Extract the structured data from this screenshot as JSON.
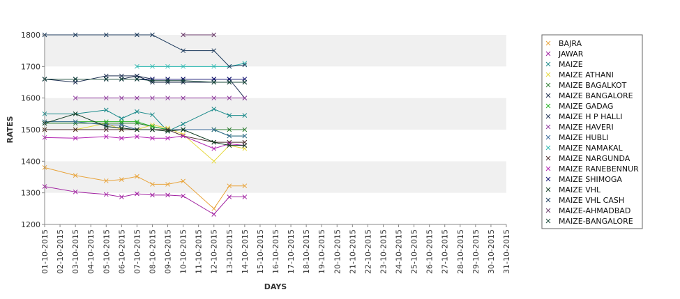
{
  "chart_data": {
    "type": "line",
    "xlabel": "DAYS",
    "ylabel": "RATES",
    "ylim": [
      1200,
      1800
    ],
    "yticks": [
      1200,
      1300,
      1400,
      1500,
      1600,
      1700,
      1800
    ],
    "grid": "alternating horizontal bands",
    "legend_position": "right",
    "categories": [
      "01-10-2015",
      "02-10-2015",
      "03-10-2015",
      "04-10-2015",
      "05-10-2015",
      "06-10-2015",
      "07-10-2015",
      "08-10-2015",
      "09-10-2015",
      "10-10-2015",
      "11-10-2015",
      "12-10-2015",
      "13-10-2015",
      "14-10-2015",
      "15-10-2015",
      "16-10-2015",
      "17-10-2015",
      "18-10-2015",
      "19-10-2015",
      "20-10-2015",
      "21-10-2015",
      "22-10-2015",
      "23-10-2015",
      "24-10-2015",
      "25-10-2015",
      "26-10-2015",
      "27-10-2015",
      "28-10-2015",
      "29-10-2015",
      "30-10-2015",
      "31-10-2015"
    ],
    "series": [
      {
        "name": "BAJRA",
        "color": "#E8A33A",
        "points": [
          [
            "01-10-2015",
            1380
          ],
          [
            "03-10-2015",
            1355
          ],
          [
            "05-10-2015",
            1338
          ],
          [
            "06-10-2015",
            1342
          ],
          [
            "07-10-2015",
            1352
          ],
          [
            "08-10-2015",
            1327
          ],
          [
            "09-10-2015",
            1327
          ],
          [
            "10-10-2015",
            1337
          ],
          [
            "12-10-2015",
            1250
          ],
          [
            "13-10-2015",
            1322
          ],
          [
            "14-10-2015",
            1322
          ]
        ]
      },
      {
        "name": "JAWAR",
        "color": "#A020A0",
        "points": [
          [
            "01-10-2015",
            1320
          ],
          [
            "03-10-2015",
            1303
          ],
          [
            "05-10-2015",
            1295
          ],
          [
            "06-10-2015",
            1287
          ],
          [
            "07-10-2015",
            1297
          ],
          [
            "08-10-2015",
            1293
          ],
          [
            "09-10-2015",
            1293
          ],
          [
            "10-10-2015",
            1290
          ],
          [
            "12-10-2015",
            1232
          ],
          [
            "13-10-2015",
            1287
          ],
          [
            "14-10-2015",
            1287
          ]
        ]
      },
      {
        "name": "MAIZE",
        "color": "#1A8A8A",
        "points": [
          [
            "01-10-2015",
            1550
          ],
          [
            "03-10-2015",
            1550
          ],
          [
            "05-10-2015",
            1562
          ],
          [
            "06-10-2015",
            1535
          ],
          [
            "07-10-2015",
            1557
          ],
          [
            "08-10-2015",
            1547
          ],
          [
            "09-10-2015",
            1495
          ],
          [
            "10-10-2015",
            1518
          ],
          [
            "12-10-2015",
            1565
          ],
          [
            "13-10-2015",
            1545
          ],
          [
            "14-10-2015",
            1545
          ]
        ]
      },
      {
        "name": "MAIZE ATHANI",
        "color": "#E6D83A",
        "points": [
          [
            "01-10-2015",
            1500
          ],
          [
            "03-10-2015",
            1500
          ],
          [
            "05-10-2015",
            1520
          ],
          [
            "06-10-2015",
            1500
          ],
          [
            "07-10-2015",
            1500
          ],
          [
            "08-10-2015",
            1515
          ],
          [
            "09-10-2015",
            1505
          ],
          [
            "10-10-2015",
            1485
          ],
          [
            "12-10-2015",
            1400
          ],
          [
            "13-10-2015",
            1450
          ],
          [
            "14-10-2015",
            1440
          ]
        ]
      },
      {
        "name": "MAIZE BAGALKOT",
        "color": "#2E7D32",
        "points": [
          [
            "01-10-2015",
            1520
          ],
          [
            "03-10-2015",
            1520
          ],
          [
            "05-10-2015",
            1520
          ],
          [
            "06-10-2015",
            1520
          ],
          [
            "07-10-2015",
            1520
          ],
          [
            "08-10-2015",
            1510
          ],
          [
            "09-10-2015",
            1500
          ],
          [
            "10-10-2015",
            1500
          ],
          [
            "12-10-2015",
            1500
          ],
          [
            "13-10-2015",
            1500
          ],
          [
            "14-10-2015",
            1500
          ]
        ]
      },
      {
        "name": "MAIZE BANGALORE",
        "color": "#1B2A4A",
        "points": [
          [
            "01-10-2015",
            1660
          ],
          [
            "03-10-2015",
            1660
          ],
          [
            "05-10-2015",
            1660
          ],
          [
            "06-10-2015",
            1660
          ],
          [
            "07-10-2015",
            1670
          ],
          [
            "08-10-2015",
            1650
          ],
          [
            "09-10-2015",
            1650
          ],
          [
            "10-10-2015",
            1650
          ],
          [
            "12-10-2015",
            1650
          ],
          [
            "13-10-2015",
            1650
          ],
          [
            "14-10-2015",
            1650
          ]
        ]
      },
      {
        "name": "MAIZE GADAG",
        "color": "#20B020",
        "points": [
          [
            "01-10-2015",
            1525
          ],
          [
            "03-10-2015",
            1525
          ],
          [
            "05-10-2015",
            1525
          ],
          [
            "06-10-2015",
            1525
          ],
          [
            "07-10-2015",
            1525
          ],
          [
            "08-10-2015",
            1510
          ],
          [
            "09-10-2015",
            1500
          ],
          [
            "10-10-2015",
            1500
          ],
          [
            "12-10-2015",
            1500
          ],
          [
            "13-10-2015",
            1480
          ],
          [
            "14-10-2015",
            1480
          ]
        ]
      },
      {
        "name": "MAIZE H P HALLI",
        "color": "#223355",
        "points": [
          [
            "01-10-2015",
            1660
          ],
          [
            "03-10-2015",
            1650
          ],
          [
            "05-10-2015",
            1670
          ],
          [
            "06-10-2015",
            1670
          ],
          [
            "07-10-2015",
            1670
          ],
          [
            "08-10-2015",
            1660
          ],
          [
            "09-10-2015",
            1660
          ],
          [
            "10-10-2015",
            1660
          ],
          [
            "12-10-2015",
            1660
          ],
          [
            "13-10-2015",
            1660
          ],
          [
            "14-10-2015",
            1600
          ]
        ]
      },
      {
        "name": "MAIZE HAVERI",
        "color": "#8E3A9C",
        "points": [
          [
            "03-10-2015",
            1600
          ],
          [
            "05-10-2015",
            1600
          ],
          [
            "06-10-2015",
            1600
          ],
          [
            "07-10-2015",
            1600
          ],
          [
            "08-10-2015",
            1600
          ],
          [
            "09-10-2015",
            1600
          ],
          [
            "10-10-2015",
            1600
          ],
          [
            "12-10-2015",
            1600
          ],
          [
            "13-10-2015",
            1600
          ],
          [
            "14-10-2015",
            1600
          ]
        ]
      },
      {
        "name": "MAIZE HUBLI",
        "color": "#3A6A9A",
        "points": [
          [
            "01-10-2015",
            1525
          ],
          [
            "03-10-2015",
            1525
          ],
          [
            "05-10-2015",
            1515
          ],
          [
            "06-10-2015",
            1515
          ],
          [
            "07-10-2015",
            1500
          ],
          [
            "08-10-2015",
            1500
          ],
          [
            "09-10-2015",
            1500
          ],
          [
            "10-10-2015",
            1500
          ],
          [
            "12-10-2015",
            1500
          ],
          [
            "13-10-2015",
            1480
          ],
          [
            "14-10-2015",
            1480
          ]
        ]
      },
      {
        "name": "MAIZE NAMAKAL",
        "color": "#2FB8B0",
        "points": [
          [
            "07-10-2015",
            1700
          ],
          [
            "08-10-2015",
            1700
          ],
          [
            "09-10-2015",
            1700
          ],
          [
            "10-10-2015",
            1700
          ],
          [
            "12-10-2015",
            1700
          ],
          [
            "13-10-2015",
            1700
          ],
          [
            "14-10-2015",
            1710
          ]
        ]
      },
      {
        "name": "MAIZE NARGUNDA",
        "color": "#4A2A2A",
        "points": [
          [
            "01-10-2015",
            1500
          ],
          [
            "03-10-2015",
            1500
          ],
          [
            "05-10-2015",
            1500
          ],
          [
            "06-10-2015",
            1500
          ],
          [
            "07-10-2015",
            1500
          ],
          [
            "08-10-2015",
            1500
          ],
          [
            "09-10-2015",
            1500
          ],
          [
            "10-10-2015",
            1480
          ],
          [
            "12-10-2015",
            1460
          ],
          [
            "13-10-2015",
            1460
          ],
          [
            "14-10-2015",
            1460
          ]
        ]
      },
      {
        "name": "MAIZE RANEBENNUR",
        "color": "#B020B0",
        "points": [
          [
            "01-10-2015",
            1475
          ],
          [
            "03-10-2015",
            1473
          ],
          [
            "05-10-2015",
            1478
          ],
          [
            "06-10-2015",
            1473
          ],
          [
            "07-10-2015",
            1478
          ],
          [
            "08-10-2015",
            1473
          ],
          [
            "09-10-2015",
            1473
          ],
          [
            "10-10-2015",
            1480
          ],
          [
            "12-10-2015",
            1440
          ],
          [
            "13-10-2015",
            1455
          ],
          [
            "14-10-2015",
            1450
          ]
        ]
      },
      {
        "name": "MAIZE SHIMOGA",
        "color": "#101070",
        "points": [
          [
            "01-10-2015",
            1660
          ],
          [
            "03-10-2015",
            1660
          ],
          [
            "05-10-2015",
            1660
          ],
          [
            "06-10-2015",
            1660
          ],
          [
            "07-10-2015",
            1660
          ],
          [
            "08-10-2015",
            1660
          ],
          [
            "09-10-2015",
            1660
          ],
          [
            "10-10-2015",
            1660
          ],
          [
            "12-10-2015",
            1660
          ],
          [
            "13-10-2015",
            1660
          ],
          [
            "14-10-2015",
            1660
          ]
        ]
      },
      {
        "name": "MAIZE VHL",
        "color": "#0F3A20",
        "points": [
          [
            "01-10-2015",
            1520
          ],
          [
            "03-10-2015",
            1550
          ],
          [
            "05-10-2015",
            1510
          ],
          [
            "06-10-2015",
            1505
          ],
          [
            "07-10-2015",
            1500
          ],
          [
            "08-10-2015",
            1500
          ],
          [
            "09-10-2015",
            1495
          ],
          [
            "10-10-2015",
            1500
          ],
          [
            "12-10-2015",
            1460
          ],
          [
            "13-10-2015",
            1450
          ],
          [
            "14-10-2015",
            1450
          ]
        ]
      },
      {
        "name": "MAIZE VHL CASH",
        "color": "#1C3A5C",
        "points": [
          [
            "01-10-2015",
            1800
          ],
          [
            "03-10-2015",
            1800
          ],
          [
            "05-10-2015",
            1800
          ],
          [
            "07-10-2015",
            1800
          ],
          [
            "08-10-2015",
            1800
          ],
          [
            "10-10-2015",
            1750
          ],
          [
            "12-10-2015",
            1750
          ],
          [
            "13-10-2015",
            1700
          ],
          [
            "14-10-2015",
            1705
          ]
        ]
      },
      {
        "name": "MAIZE-AHMADBAD",
        "color": "#6A3A6A",
        "points": [
          [
            "10-10-2015",
            1800
          ],
          [
            "12-10-2015",
            1800
          ]
        ]
      },
      {
        "name": "MAIZE-BANGALORE",
        "color": "#1A4A3A",
        "points": [
          [
            "01-10-2015",
            1660
          ],
          [
            "03-10-2015",
            1660
          ],
          [
            "05-10-2015",
            1660
          ],
          [
            "06-10-2015",
            1660
          ],
          [
            "07-10-2015",
            1660
          ],
          [
            "08-10-2015",
            1655
          ],
          [
            "09-10-2015",
            1655
          ],
          [
            "10-10-2015",
            1655
          ],
          [
            "12-10-2015",
            1650
          ],
          [
            "13-10-2015",
            1650
          ],
          [
            "14-10-2015",
            1650
          ]
        ]
      }
    ]
  }
}
